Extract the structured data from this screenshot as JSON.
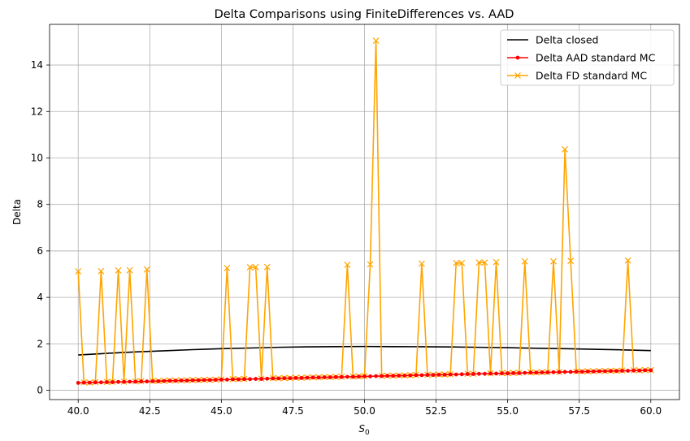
{
  "chart_data": {
    "type": "line",
    "title": "Delta Comparisons using FiniteDifferences vs. AAD",
    "xlabel_main": "S",
    "xlabel_sub": "0",
    "ylabel": "Delta",
    "xlim": [
      39.0,
      61.0
    ],
    "ylim": [
      -0.4,
      15.75
    ],
    "grid": true,
    "legend_position": "top-right",
    "x_ticks": [
      {
        "value": 40.0,
        "label": "40.0"
      },
      {
        "value": 42.5,
        "label": "42.5"
      },
      {
        "value": 45.0,
        "label": "45.0"
      },
      {
        "value": 47.5,
        "label": "47.5"
      },
      {
        "value": 50.0,
        "label": "50.0"
      },
      {
        "value": 52.5,
        "label": "52.5"
      },
      {
        "value": 55.0,
        "label": "55.0"
      },
      {
        "value": 57.5,
        "label": "57.5"
      },
      {
        "value": 60.0,
        "label": "60.0"
      }
    ],
    "y_ticks": [
      {
        "value": 0,
        "label": "0"
      },
      {
        "value": 2,
        "label": "2"
      },
      {
        "value": 4,
        "label": "4"
      },
      {
        "value": 6,
        "label": "6"
      },
      {
        "value": 8,
        "label": "8"
      },
      {
        "value": 10,
        "label": "10"
      },
      {
        "value": 12,
        "label": "12"
      },
      {
        "value": 14,
        "label": "14"
      }
    ],
    "series": [
      {
        "name": "Delta closed",
        "color": "#000000",
        "marker": "none",
        "x": [
          40.0,
          41.0,
          42.0,
          43.0,
          44.0,
          45.0,
          46.0,
          47.0,
          48.0,
          49.0,
          50.0,
          51.0,
          52.0,
          53.0,
          54.0,
          55.0,
          56.0,
          57.0,
          58.0,
          59.0,
          60.0
        ],
        "y": [
          1.52,
          1.59,
          1.65,
          1.7,
          1.75,
          1.79,
          1.82,
          1.85,
          1.87,
          1.88,
          1.885,
          1.88,
          1.875,
          1.865,
          1.85,
          1.835,
          1.81,
          1.79,
          1.765,
          1.74,
          1.71
        ]
      },
      {
        "name": "Delta AAD standard MC",
        "color": "#ff0000",
        "marker": "dot",
        "x": [
          40.0,
          40.2,
          40.4,
          40.6,
          40.8,
          41.0,
          41.2,
          41.4,
          41.6,
          41.8,
          42.0,
          42.2,
          42.4,
          42.6,
          42.8,
          43.0,
          43.2,
          43.4,
          43.6,
          43.8,
          44.0,
          44.2,
          44.4,
          44.6,
          44.8,
          45.0,
          45.2,
          45.4,
          45.6,
          45.8,
          46.0,
          46.2,
          46.4,
          46.6,
          46.8,
          47.0,
          47.2,
          47.4,
          47.6,
          47.8,
          48.0,
          48.2,
          48.4,
          48.6,
          48.8,
          49.0,
          49.2,
          49.4,
          49.6,
          49.8,
          50.0,
          50.2,
          50.4,
          50.6,
          50.8,
          51.0,
          51.2,
          51.4,
          51.6,
          51.8,
          52.0,
          52.2,
          52.4,
          52.6,
          52.8,
          53.0,
          53.2,
          53.4,
          53.6,
          53.8,
          54.0,
          54.2,
          54.4,
          54.6,
          54.8,
          55.0,
          55.2,
          55.4,
          55.6,
          55.8,
          56.0,
          56.2,
          56.4,
          56.6,
          56.8,
          57.0,
          57.2,
          57.4,
          57.6,
          57.8,
          58.0,
          58.2,
          58.4,
          58.6,
          58.8,
          59.0,
          59.2,
          59.4,
          59.6,
          59.8,
          60.0
        ],
        "y": [
          0.32,
          0.33,
          0.33,
          0.34,
          0.34,
          0.35,
          0.35,
          0.36,
          0.36,
          0.37,
          0.37,
          0.38,
          0.38,
          0.39,
          0.39,
          0.4,
          0.41,
          0.41,
          0.42,
          0.42,
          0.43,
          0.43,
          0.44,
          0.44,
          0.45,
          0.46,
          0.46,
          0.47,
          0.47,
          0.48,
          0.48,
          0.49,
          0.49,
          0.5,
          0.51,
          0.51,
          0.52,
          0.52,
          0.53,
          0.53,
          0.54,
          0.55,
          0.55,
          0.56,
          0.56,
          0.57,
          0.57,
          0.58,
          0.58,
          0.59,
          0.6,
          0.6,
          0.61,
          0.61,
          0.62,
          0.62,
          0.63,
          0.63,
          0.64,
          0.65,
          0.65,
          0.66,
          0.66,
          0.67,
          0.67,
          0.68,
          0.68,
          0.69,
          0.7,
          0.7,
          0.71,
          0.71,
          0.72,
          0.72,
          0.73,
          0.73,
          0.74,
          0.74,
          0.75,
          0.76,
          0.76,
          0.77,
          0.77,
          0.78,
          0.78,
          0.79,
          0.79,
          0.8,
          0.8,
          0.81,
          0.81,
          0.82,
          0.82,
          0.83,
          0.83,
          0.84,
          0.84,
          0.85,
          0.85,
          0.86,
          0.86
        ]
      },
      {
        "name": "Delta FD standard MC",
        "color": "#ffa500",
        "marker": "x",
        "x": [
          40.0,
          40.2,
          40.4,
          40.6,
          40.8,
          41.0,
          41.2,
          41.4,
          41.6,
          41.8,
          42.0,
          42.2,
          42.4,
          42.6,
          42.8,
          43.0,
          43.2,
          43.4,
          43.6,
          43.8,
          44.0,
          44.2,
          44.4,
          44.6,
          44.8,
          45.0,
          45.2,
          45.4,
          45.6,
          45.8,
          46.0,
          46.2,
          46.4,
          46.6,
          46.8,
          47.0,
          47.2,
          47.4,
          47.6,
          47.8,
          48.0,
          48.2,
          48.4,
          48.6,
          48.8,
          49.0,
          49.2,
          49.4,
          49.6,
          49.8,
          50.0,
          50.2,
          50.4,
          50.6,
          50.8,
          51.0,
          51.2,
          51.4,
          51.6,
          51.8,
          52.0,
          52.2,
          52.4,
          52.6,
          52.8,
          53.0,
          53.2,
          53.4,
          53.6,
          53.8,
          54.0,
          54.2,
          54.4,
          54.6,
          54.8,
          55.0,
          55.2,
          55.4,
          55.6,
          55.8,
          56.0,
          56.2,
          56.4,
          56.6,
          56.8,
          57.0,
          57.2,
          57.4,
          57.6,
          57.8,
          58.0,
          58.2,
          58.4,
          58.6,
          58.8,
          59.0,
          59.2,
          59.4,
          59.6,
          59.8,
          60.0
        ],
        "y": [
          5.12,
          0.34,
          0.33,
          0.35,
          5.13,
          0.36,
          0.36,
          5.16,
          0.37,
          5.17,
          0.38,
          0.39,
          5.2,
          0.4,
          0.4,
          0.41,
          0.42,
          0.42,
          0.43,
          0.43,
          0.44,
          0.44,
          0.45,
          0.45,
          0.46,
          0.47,
          5.26,
          0.48,
          0.48,
          0.49,
          5.3,
          5.3,
          0.5,
          5.31,
          0.52,
          0.52,
          0.53,
          0.53,
          0.54,
          0.54,
          0.55,
          0.56,
          0.56,
          0.57,
          0.57,
          0.58,
          0.58,
          5.4,
          0.59,
          0.6,
          0.61,
          5.42,
          15.05,
          0.62,
          0.63,
          0.63,
          0.64,
          0.64,
          0.65,
          0.66,
          5.45,
          0.67,
          0.67,
          0.68,
          0.68,
          0.69,
          5.48,
          5.48,
          0.71,
          0.71,
          5.5,
          5.5,
          0.73,
          5.52,
          0.74,
          0.74,
          0.75,
          0.75,
          5.55,
          0.77,
          0.77,
          0.78,
          0.78,
          5.55,
          0.79,
          10.37,
          5.57,
          0.81,
          0.81,
          0.82,
          0.82,
          0.83,
          0.83,
          0.84,
          0.84,
          0.85,
          5.59,
          0.86,
          0.86,
          0.87,
          0.87
        ]
      }
    ]
  }
}
